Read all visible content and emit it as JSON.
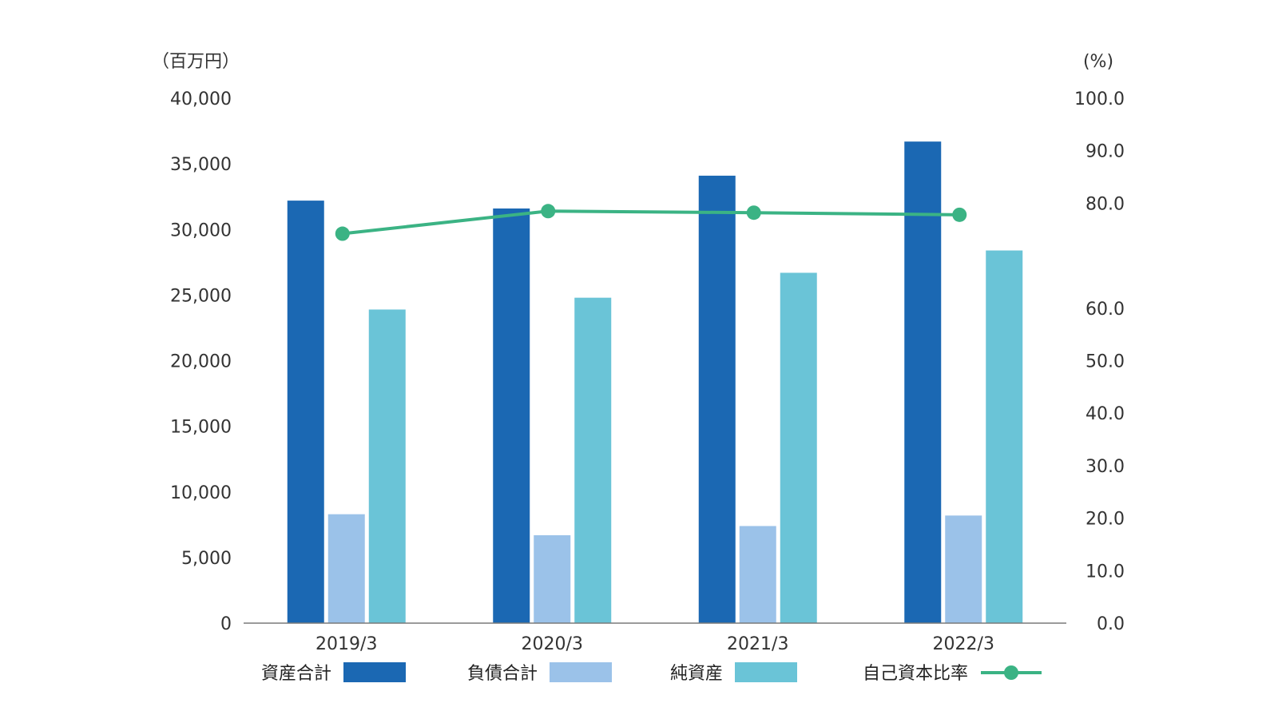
{
  "chart_data": {
    "type": "bar",
    "categories": [
      "2019/3",
      "2020/3",
      "2021/3",
      "2022/3"
    ],
    "series": [
      {
        "name": "資産合計",
        "kind": "bar",
        "axis": "left",
        "color": "#1b68b3",
        "values": [
          32200,
          31600,
          34100,
          36700
        ]
      },
      {
        "name": "負債合計",
        "kind": "bar",
        "axis": "left",
        "color": "#9bc2e9",
        "values": [
          8300,
          6700,
          7400,
          8200
        ]
      },
      {
        "name": "純資産",
        "kind": "bar",
        "axis": "left",
        "color": "#6ac4d7",
        "values": [
          23900,
          24800,
          26700,
          28400
        ]
      },
      {
        "name": "自己資本比率",
        "kind": "line",
        "axis": "right",
        "color": "#3bb384",
        "values": [
          74.2,
          78.5,
          78.2,
          77.8
        ]
      }
    ],
    "left_axis": {
      "unit_label": "（百万円）",
      "ylim": [
        0,
        40000
      ],
      "ticks": [
        "0",
        "5,000",
        "10,000",
        "15,000",
        "20,000",
        "25,000",
        "30,000",
        "35,000",
        "40,000"
      ]
    },
    "right_axis": {
      "unit_label": "(%)",
      "ylim": [
        0,
        100
      ],
      "ticks": [
        "0.0",
        "10.0",
        "20.0",
        "30.0",
        "40.0",
        "50.0",
        "60.0",
        "80.0",
        "90.0",
        "100.0"
      ]
    },
    "grid": false,
    "legend_position": "bottom"
  }
}
